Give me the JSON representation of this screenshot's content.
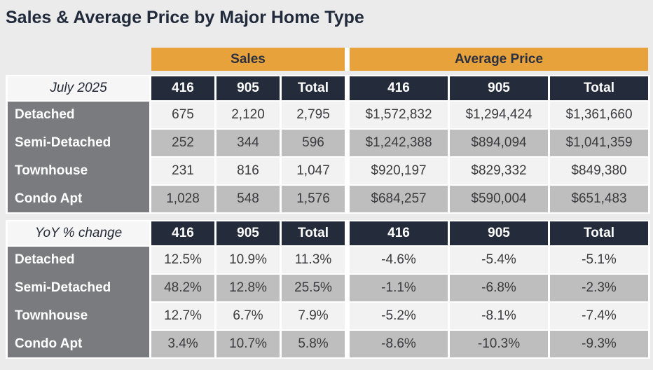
{
  "title": "Sales & Average Price by Major Home Type",
  "group_headers": {
    "sales": "Sales",
    "average_price": "Average Price"
  },
  "column_headers": [
    "416",
    "905",
    "Total"
  ],
  "sections": [
    {
      "label": "July 2025",
      "rows": [
        {
          "name": "Detached",
          "sales": [
            "675",
            "2,120",
            "2,795"
          ],
          "avg_price": [
            "$1,572,832",
            "$1,294,424",
            "$1,361,660"
          ]
        },
        {
          "name": "Semi-Detached",
          "sales": [
            "252",
            "344",
            "596"
          ],
          "avg_price": [
            "$1,242,388",
            "$894,094",
            "$1,041,359"
          ]
        },
        {
          "name": "Townhouse",
          "sales": [
            "231",
            "816",
            "1,047"
          ],
          "avg_price": [
            "$920,197",
            "$829,332",
            "$849,380"
          ]
        },
        {
          "name": "Condo Apt",
          "sales": [
            "1,028",
            "548",
            "1,576"
          ],
          "avg_price": [
            "$684,257",
            "$590,004",
            "$651,483"
          ]
        }
      ]
    },
    {
      "label": "YoY % change",
      "rows": [
        {
          "name": "Detached",
          "sales": [
            "12.5%",
            "10.9%",
            "11.3%"
          ],
          "avg_price": [
            "-4.6%",
            "-5.4%",
            "-5.1%"
          ]
        },
        {
          "name": "Semi-Detached",
          "sales": [
            "48.2%",
            "12.8%",
            "25.5%"
          ],
          "avg_price": [
            "-1.1%",
            "-6.8%",
            "-2.3%"
          ]
        },
        {
          "name": "Townhouse",
          "sales": [
            "12.7%",
            "6.7%",
            "7.9%"
          ],
          "avg_price": [
            "-5.2%",
            "-8.1%",
            "-7.4%"
          ]
        },
        {
          "name": "Condo Apt",
          "sales": [
            "3.4%",
            "10.7%",
            "5.8%"
          ],
          "avg_price": [
            "-8.6%",
            "-10.3%",
            "-9.3%"
          ]
        }
      ]
    }
  ],
  "colors": {
    "page_bg": "#EBEBEB",
    "gold_header": "#E8A23C",
    "navy_header": "#242B3A",
    "label_gray": "#7A7B7E",
    "row_light": "#F2F2F2",
    "row_dark": "#BEBEBE",
    "title_text": "#222B3C"
  },
  "chart_data": {
    "type": "table",
    "title": "Sales & Average Price by Major Home Type",
    "column_groups": [
      "Sales",
      "Average Price"
    ],
    "columns": [
      "416",
      "905",
      "Total",
      "416",
      "905",
      "Total"
    ],
    "row_groups": [
      {
        "label": "July 2025",
        "rows": [
          [
            "Detached",
            "675",
            "2,120",
            "2,795",
            "$1,572,832",
            "$1,294,424",
            "$1,361,660"
          ],
          [
            "Semi-Detached",
            "252",
            "344",
            "596",
            "$1,242,388",
            "$894,094",
            "$1,041,359"
          ],
          [
            "Townhouse",
            "231",
            "816",
            "1,047",
            "$920,197",
            "$829,332",
            "$849,380"
          ],
          [
            "Condo Apt",
            "1,028",
            "548",
            "1,576",
            "$684,257",
            "$590,004",
            "$651,483"
          ]
        ]
      },
      {
        "label": "YoY % change",
        "rows": [
          [
            "Detached",
            "12.5%",
            "10.9%",
            "11.3%",
            "-4.6%",
            "-5.4%",
            "-5.1%"
          ],
          [
            "Semi-Detached",
            "48.2%",
            "12.8%",
            "25.5%",
            "-1.1%",
            "-6.8%",
            "-2.3%"
          ],
          [
            "Townhouse",
            "12.7%",
            "6.7%",
            "7.9%",
            "-5.2%",
            "-8.1%",
            "-7.4%"
          ],
          [
            "Condo Apt",
            "3.4%",
            "10.7%",
            "5.8%",
            "-8.6%",
            "-10.3%",
            "-9.3%"
          ]
        ]
      }
    ]
  }
}
